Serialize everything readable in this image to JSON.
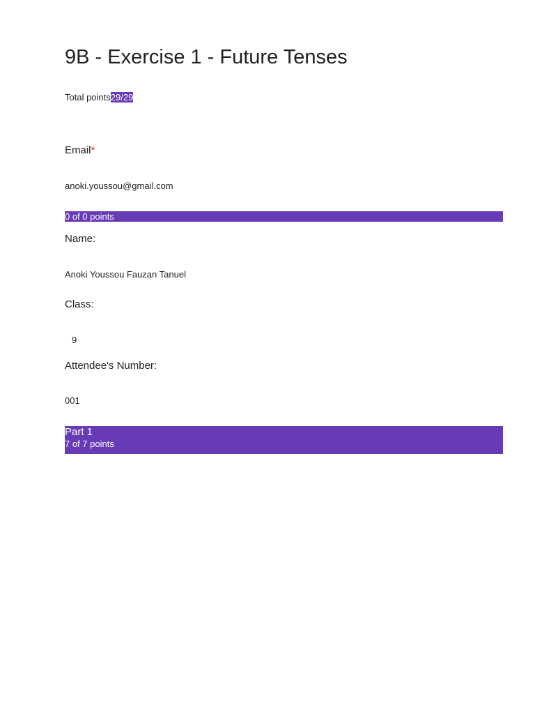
{
  "form": {
    "title": "9B - Exercise 1 - Future Tenses",
    "total_points_label": "Total points",
    "total_points_value": "29/29"
  },
  "email": {
    "label": "Email",
    "required_marker": "*",
    "value": "anoki.youssou@gmail.com"
  },
  "section_intro": {
    "points": "0 of 0 points"
  },
  "questions": [
    {
      "label": "Name:",
      "answer": "Anoki Youssou Fauzan Tanuel"
    },
    {
      "label": "Class:",
      "answer": "9"
    },
    {
      "label": "Attendee's Number:",
      "answer": "001"
    }
  ],
  "section_part1": {
    "title": "Part 1",
    "points": "7 of 7 points"
  },
  "colors": {
    "accent": "#673ab7",
    "required": "#d93025",
    "text": "#202124"
  }
}
